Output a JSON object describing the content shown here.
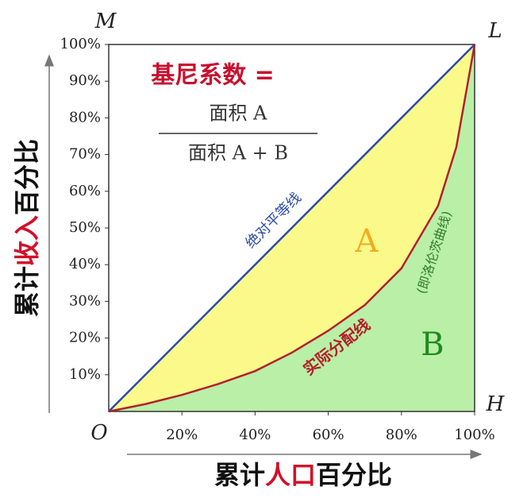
{
  "chart_data": {
    "type": "lorenz",
    "formula": {
      "lhs": "基尼系数 =",
      "numerator": "面积 A",
      "denominator": "面积 A + B"
    },
    "corner_labels": {
      "top_left": "M",
      "top_right": "L",
      "origin": "O",
      "bottom_right": "H"
    },
    "area_labels": [
      "A",
      "B"
    ],
    "x_label": [
      "累计",
      "人口",
      "百分比"
    ],
    "y_label": [
      "累计",
      "收入",
      "百分比"
    ],
    "xlim": [
      0,
      100
    ],
    "ylim": [
      0,
      100
    ],
    "xticks": [
      {
        "value": 20,
        "label": "20%"
      },
      {
        "value": 40,
        "label": "40%"
      },
      {
        "value": 60,
        "label": "60%"
      },
      {
        "value": 80,
        "label": "80%"
      },
      {
        "value": 100,
        "label": "100%"
      }
    ],
    "yticks": [
      {
        "value": 10,
        "label": "10%"
      },
      {
        "value": 20,
        "label": "20%"
      },
      {
        "value": 30,
        "label": "30%"
      },
      {
        "value": 40,
        "label": "40%"
      },
      {
        "value": 50,
        "label": "50%"
      },
      {
        "value": 60,
        "label": "60%"
      },
      {
        "value": 70,
        "label": "70%"
      },
      {
        "value": 80,
        "label": "80%"
      },
      {
        "value": 90,
        "label": "90%"
      },
      {
        "value": 100,
        "label": "100%"
      }
    ],
    "series": [
      {
        "name": "绝对平等线",
        "color": "#2b4ba6",
        "x": [
          0,
          100
        ],
        "values": [
          0,
          100
        ]
      },
      {
        "name": "实际分配线",
        "color": "#b3202c",
        "x": [
          0,
          10,
          20,
          30,
          40,
          50,
          60,
          70,
          80,
          90,
          95,
          100
        ],
        "values": [
          0,
          2,
          4.5,
          7.5,
          11,
          16,
          22,
          29,
          39,
          56,
          72,
          100
        ]
      }
    ],
    "curve_note": "(即洛伦茨曲线)"
  }
}
